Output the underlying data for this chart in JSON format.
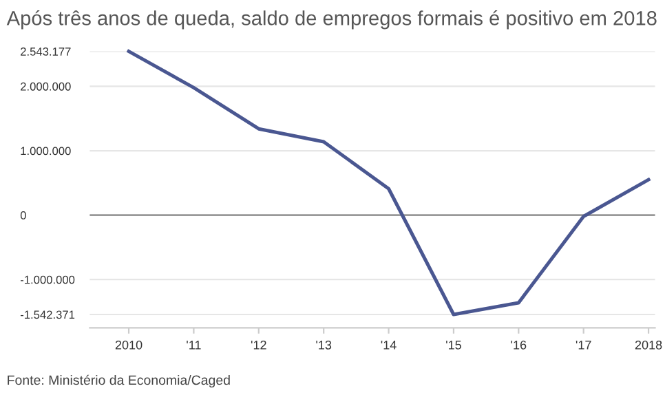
{
  "chart_data": {
    "type": "line",
    "title": "Após três anos de queda, saldo de empregos formais é positivo em 2018",
    "x": [
      2010,
      2011,
      2012,
      2013,
      2014,
      2015,
      2016,
      2017,
      2018
    ],
    "series": [
      {
        "color": "#4a5791",
        "values": [
          2543177,
          1980000,
          1340000,
          1140000,
          410000,
          -1542371,
          -1360000,
          -20000,
          550000
        ]
      }
    ],
    "xlim": [
      2009.4,
      2018.1
    ],
    "xticks": [
      {
        "value": 2010,
        "label": "2010"
      },
      {
        "value": 2011,
        "label": "'11"
      },
      {
        "value": 2012,
        "label": "'12"
      },
      {
        "value": 2013,
        "label": "'13"
      },
      {
        "value": 2014,
        "label": "'14"
      },
      {
        "value": 2015,
        "label": "'15"
      },
      {
        "value": 2016,
        "label": "'16"
      },
      {
        "value": 2017,
        "label": "'17"
      },
      {
        "value": 2018,
        "label": "2018"
      }
    ],
    "ylim": [
      -1750000,
      2543177
    ],
    "yticks": [
      {
        "value": -1542371,
        "label": "-1.542.371"
      },
      {
        "value": -1000000,
        "label": "-1.000.000"
      },
      {
        "value": 0,
        "label": "0"
      },
      {
        "value": 1000000,
        "label": "1.000.000"
      },
      {
        "value": 2000000,
        "label": "2.000.000"
      },
      {
        "value": 2543177,
        "label": "2.543.177"
      }
    ],
    "grid": "y",
    "ref_lines": [
      {
        "axis": "y",
        "value": 0,
        "color": "#999999"
      }
    ],
    "annotations": [
      "Fonte: Ministério da Economia/Caged"
    ]
  }
}
